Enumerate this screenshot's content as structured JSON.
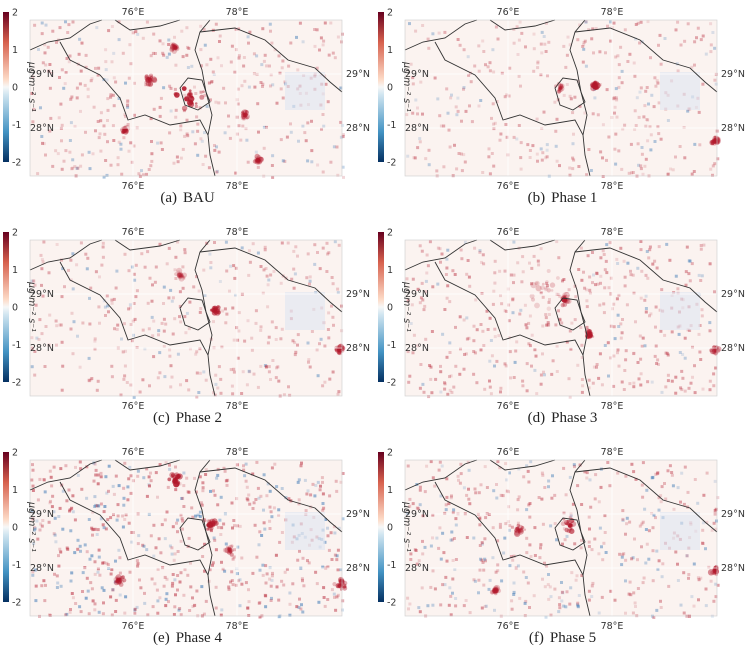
{
  "panels": [
    {
      "label": "(a)",
      "title": "BAU",
      "lon_ticks": [
        "76°E",
        "78°E"
      ],
      "lat_ticks": [
        "29°N",
        "28°N"
      ],
      "colorbar_ticks": [
        "2",
        "1",
        "0",
        "-1",
        "-2"
      ],
      "unit": "μg m⁻² s⁻¹"
    },
    {
      "label": "(b)",
      "title": "Phase 1",
      "lon_ticks": [
        "76°E",
        "78°E"
      ],
      "lat_ticks": [
        "29°N",
        "28°N"
      ],
      "colorbar_ticks": [
        "2",
        "1",
        "0",
        "-1",
        "-2"
      ],
      "unit": "μg m⁻² s⁻¹"
    },
    {
      "label": "(c)",
      "title": "Phase 2",
      "lon_ticks": [
        "76°E",
        "78°E"
      ],
      "lat_ticks": [
        "29°N",
        "28°N"
      ],
      "colorbar_ticks": [
        "2",
        "1",
        "0",
        "-1",
        "-2"
      ],
      "unit": "μg m⁻² s⁻¹"
    },
    {
      "label": "(d)",
      "title": "Phase 3",
      "lon_ticks": [
        "76°E",
        "78°E"
      ],
      "lat_ticks": [
        "29°N",
        "28°N"
      ],
      "colorbar_ticks": [
        "2",
        "1",
        "0",
        "-1",
        "-2"
      ],
      "unit": "μg m⁻² s⁻¹"
    },
    {
      "label": "(e)",
      "title": "Phase 4",
      "lon_ticks": [
        "76°E",
        "78°E"
      ],
      "lat_ticks": [
        "29°N",
        "28°N"
      ],
      "colorbar_ticks": [
        "2",
        "1",
        "0",
        "-1",
        "-2"
      ],
      "unit": "μg m⁻² s⁻¹"
    },
    {
      "label": "(f)",
      "title": "Phase 5",
      "lon_ticks": [
        "76°E",
        "78°E"
      ],
      "lat_ticks": [
        "29°N",
        "28°N"
      ],
      "colorbar_ticks": [
        "2",
        "1",
        "0",
        "-1",
        "-2"
      ],
      "unit": "μg m⁻² s⁻¹"
    }
  ],
  "colors": {
    "positive": "#b2182b",
    "negative": "#2166ac",
    "neutral": "#f7f7f7",
    "boundary": "#333333"
  }
}
